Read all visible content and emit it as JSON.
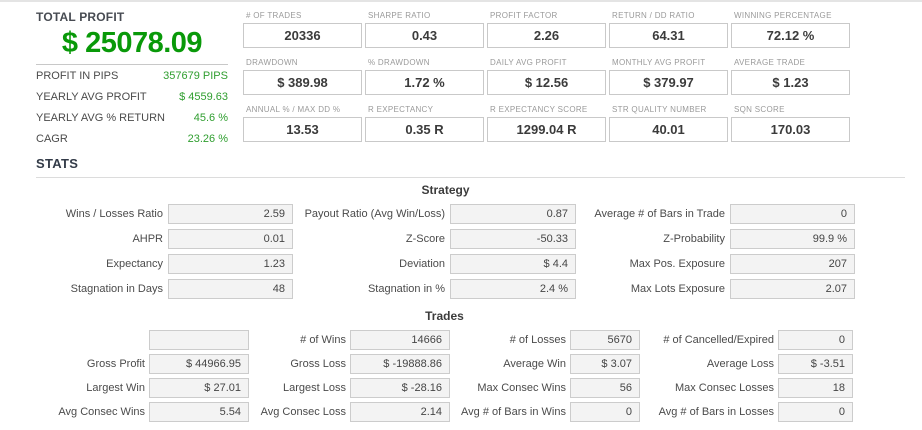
{
  "colors": {
    "profit_green": "#099909",
    "value_green": "#2f9e2f",
    "heading_dark": "#333b48",
    "label_gray": "#9a9a9a",
    "text_dark": "#3b3b3b",
    "box_border": "#cccccc",
    "box_bg": "#f3f3f3"
  },
  "summary": {
    "title": "TOTAL PROFIT",
    "total_profit": "$ 25078.09",
    "rows": [
      {
        "label": "PROFIT IN PIPS",
        "value": "357679 PIPS"
      },
      {
        "label": "YEARLY AVG PROFIT",
        "value": "$ 4559.63"
      },
      {
        "label": "YEARLY AVG % RETURN",
        "value": "45.6 %"
      },
      {
        "label": "CAGR",
        "value": "23.26 %"
      }
    ]
  },
  "metrics": {
    "rows": [
      [
        {
          "label": "# OF TRADES",
          "value": "20336"
        },
        {
          "label": "SHARPE RATIO",
          "value": "0.43"
        },
        {
          "label": "PROFIT FACTOR",
          "value": "2.26"
        },
        {
          "label": "RETURN / DD RATIO",
          "value": "64.31"
        },
        {
          "label": "WINNING PERCENTAGE",
          "value": "72.12 %"
        }
      ],
      [
        {
          "label": "DRAWDOWN",
          "value": "$ 389.98"
        },
        {
          "label": "% DRAWDOWN",
          "value": "1.72 %"
        },
        {
          "label": "DAILY AVG PROFIT",
          "value": "$ 12.56"
        },
        {
          "label": "MONTHLY AVG PROFIT",
          "value": "$ 379.97"
        },
        {
          "label": "AVERAGE TRADE",
          "value": "$ 1.23"
        }
      ],
      [
        {
          "label": "ANNUAL % / MAX DD %",
          "value": "13.53"
        },
        {
          "label": "R EXPECTANCY",
          "value": "0.35 R"
        },
        {
          "label": "R EXPECTANCY SCORE",
          "value": "1299.04 R"
        },
        {
          "label": "STR QUALITY NUMBER",
          "value": "40.01"
        },
        {
          "label": "SQN SCORE",
          "value": "170.03"
        }
      ]
    ]
  },
  "stats": {
    "heading": "STATS",
    "strategy": {
      "title": "Strategy",
      "rows": [
        [
          {
            "label": "Wins / Losses Ratio",
            "value": "2.59"
          },
          {
            "label": "Payout Ratio (Avg Win/Loss)",
            "value": "0.87"
          },
          {
            "label": "Average # of Bars in Trade",
            "value": "0"
          }
        ],
        [
          {
            "label": "AHPR",
            "value": "0.01"
          },
          {
            "label": "Z-Score",
            "value": "-50.33"
          },
          {
            "label": "Z-Probability",
            "value": "99.9 %"
          }
        ],
        [
          {
            "label": "Expectancy",
            "value": "1.23"
          },
          {
            "label": "Deviation",
            "value": "$ 4.4"
          },
          {
            "label": "Max Pos. Exposure",
            "value": "207"
          }
        ],
        [
          {
            "label": "Stagnation in Days",
            "value": "48"
          },
          {
            "label": "Stagnation in %",
            "value": "2.4 %"
          },
          {
            "label": "Max Lots Exposure",
            "value": "2.07"
          }
        ]
      ]
    },
    "trades": {
      "title": "Trades",
      "rows": [
        [
          {
            "label": "",
            "value": ""
          },
          {
            "label": "# of Wins",
            "value": "14666"
          },
          {
            "label": "# of Losses",
            "value": "5670"
          },
          {
            "label": "# of Cancelled/Expired",
            "value": "0"
          }
        ],
        [
          {
            "label": "Gross Profit",
            "value": "$ 44966.95"
          },
          {
            "label": "Gross Loss",
            "value": "$ -19888.86"
          },
          {
            "label": "Average Win",
            "value": "$ 3.07"
          },
          {
            "label": "Average Loss",
            "value": "$ -3.51"
          }
        ],
        [
          {
            "label": "Largest Win",
            "value": "$ 27.01"
          },
          {
            "label": "Largest Loss",
            "value": "$ -28.16"
          },
          {
            "label": "Max Consec Wins",
            "value": "56"
          },
          {
            "label": "Max Consec Losses",
            "value": "18"
          }
        ],
        [
          {
            "label": "Avg Consec Wins",
            "value": "5.54"
          },
          {
            "label": "Avg Consec Loss",
            "value": "2.14"
          },
          {
            "label": "Avg # of Bars in Wins",
            "value": "0"
          },
          {
            "label": "Avg # of Bars in Losses",
            "value": "0"
          }
        ]
      ]
    }
  }
}
